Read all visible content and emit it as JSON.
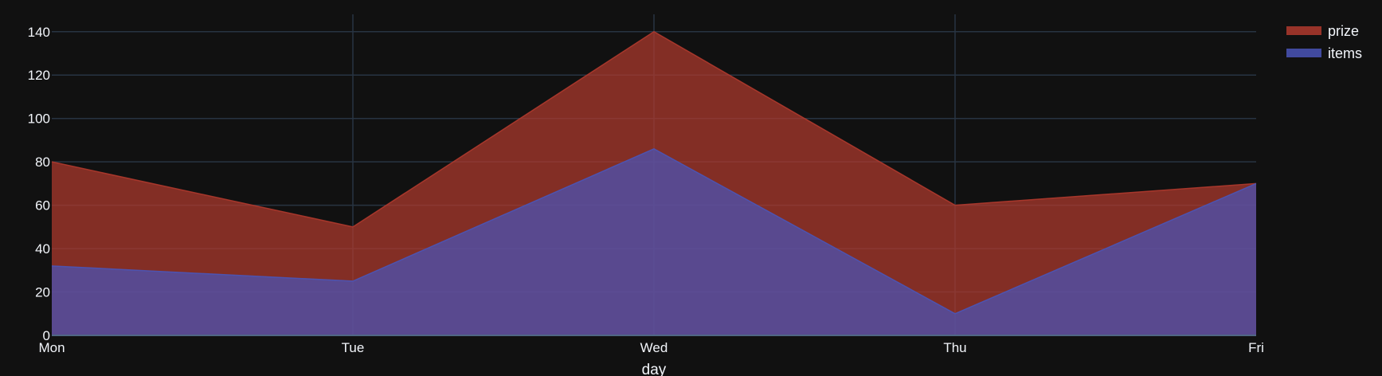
{
  "chart_data": {
    "type": "area",
    "categories": [
      "Mon",
      "Tue",
      "Wed",
      "Thu",
      "Fri"
    ],
    "xlabel": "day",
    "ylabel": "",
    "ylim": [
      0,
      148
    ],
    "yticks": [
      0,
      20,
      40,
      60,
      80,
      100,
      120,
      140
    ],
    "grid": true,
    "legend_position": "top-right",
    "series": [
      {
        "name": "prize",
        "values": [
          80,
          50,
          140,
          60,
          70
        ],
        "color": "#b03a2e"
      },
      {
        "name": "items",
        "values": [
          32,
          25,
          86,
          10,
          70
        ],
        "color": "#4a55b8"
      }
    ],
    "background": "#111111"
  }
}
